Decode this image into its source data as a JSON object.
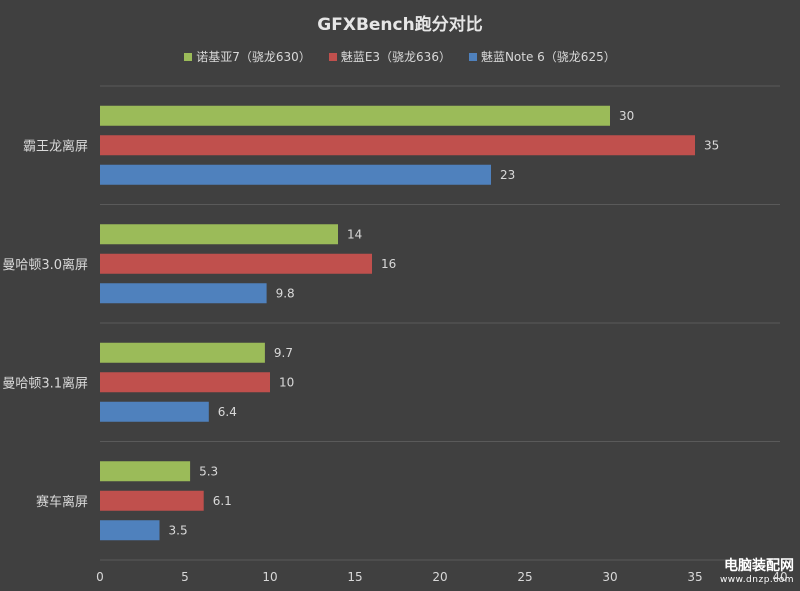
{
  "chart_data": {
    "type": "bar",
    "orientation": "horizontal",
    "title": "GFXBench跑分对比",
    "categories": [
      "霸王龙离屏",
      "曼哈顿3.0离屏",
      "曼哈顿3.1离屏",
      "赛车离屏"
    ],
    "series": [
      {
        "name": "诺基亚7（骁龙630）",
        "color": "#9bbb59",
        "values": [
          30,
          14,
          9.7,
          5.3
        ]
      },
      {
        "name": "魅蓝E3（骁龙636）",
        "color": "#c0504d",
        "values": [
          35,
          16,
          10,
          6.1
        ]
      },
      {
        "name": "魅蓝Note 6（骁龙625）",
        "color": "#4f81bd",
        "values": [
          23,
          9.8,
          6.4,
          3.5
        ]
      }
    ],
    "data_labels": [
      [
        "30",
        "14",
        "9.7",
        "5.3"
      ],
      [
        "35",
        "16",
        "10",
        "6.1"
      ],
      [
        "23",
        "9.8",
        "6.4",
        "3.5"
      ]
    ],
    "xlim": [
      0,
      40
    ],
    "xticks": [
      "0",
      "5",
      "10",
      "15",
      "20",
      "25",
      "30",
      "35",
      "40"
    ],
    "grid": "horizontal separators between categories",
    "legend_position": "top"
  },
  "watermark": {
    "name": "电脑装配网",
    "url": "www.dnzp.com"
  },
  "colors": {
    "background": "#404040",
    "grid": "#5a5a5a",
    "text": "#d9d9d9"
  }
}
